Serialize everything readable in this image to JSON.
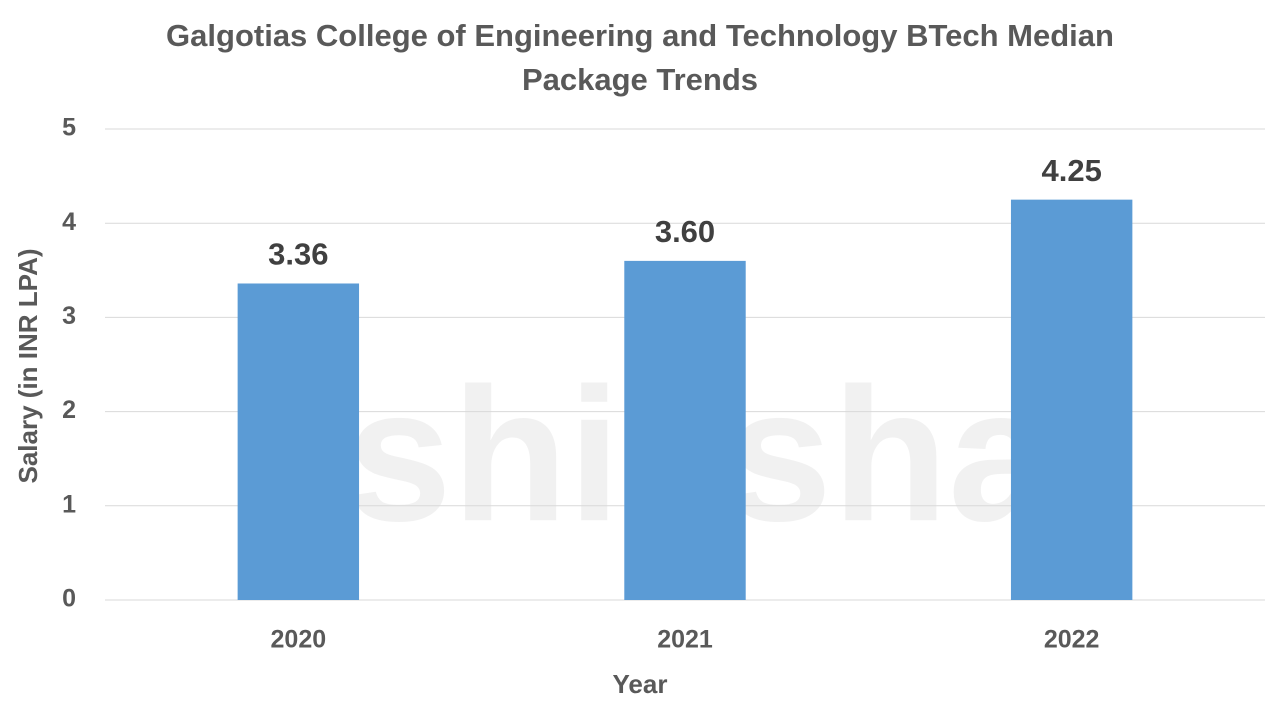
{
  "chart_data": {
    "type": "bar",
    "title": "Galgotias College of Engineering and Technology BTech Median Package Trends",
    "x_label": "Year",
    "y_label": "Salary (in INR LPA)",
    "categories": [
      "2020",
      "2021",
      "2022"
    ],
    "values": [
      3.36,
      3.6,
      4.25
    ],
    "value_labels": [
      "3.36",
      "3.60",
      "4.25"
    ],
    "color": "#5b9bd5",
    "ylim": [
      0,
      5
    ],
    "yticks": [
      0,
      1,
      2,
      3,
      4,
      5
    ],
    "grid": true,
    "watermark": "shiksha"
  }
}
